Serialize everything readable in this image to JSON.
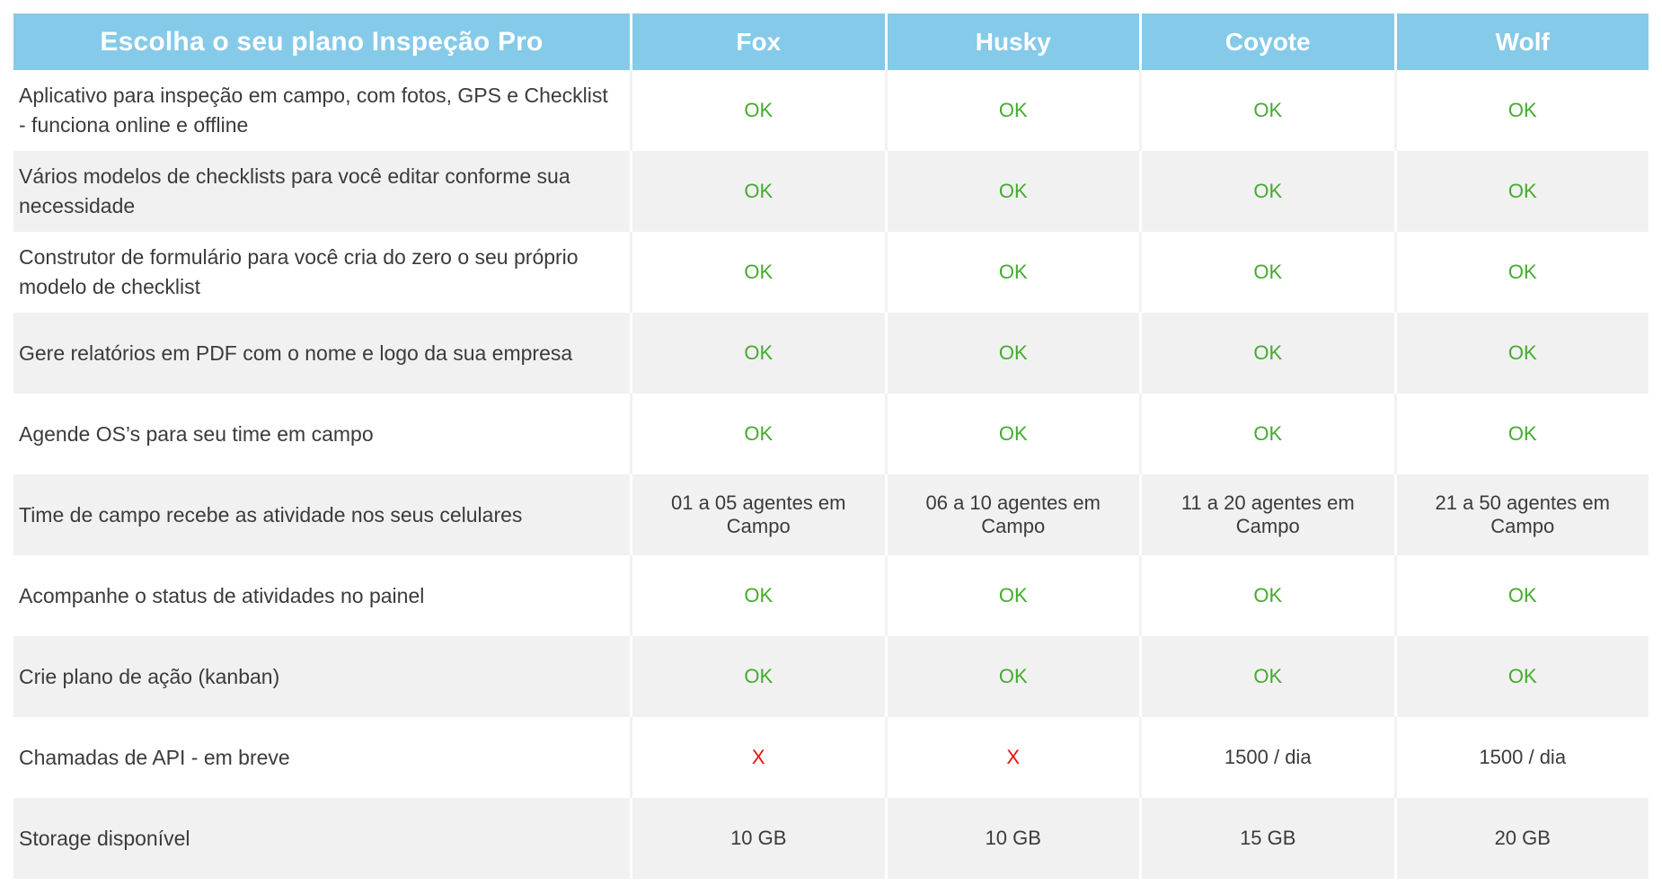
{
  "colors": {
    "header_bg": "#85CAE9",
    "header_text": "#FFFFFF",
    "row_alt_bg": "#F1F1F1",
    "body_text": "#3B3B3B",
    "ok_green": "#44AB2F",
    "x_red": "#F30B0B"
  },
  "table": {
    "title": "Escolha o seu plano Inspeção Pro",
    "plans": [
      "Fox",
      "Husky",
      "Coyote",
      "Wolf"
    ],
    "ok_label": "OK",
    "unavailable_label": "X",
    "rows": [
      {
        "feature": "Aplicativo para inspeção em campo, com fotos, GPS e Checklist - funciona online e offline",
        "values": [
          "OK",
          "OK",
          "OK",
          "OK"
        ]
      },
      {
        "feature": "Vários modelos de checklists para você editar conforme sua necessidade",
        "values": [
          "OK",
          "OK",
          "OK",
          "OK"
        ]
      },
      {
        "feature": "Construtor de formulário para você cria do zero o seu próprio modelo de checklist",
        "values": [
          "OK",
          "OK",
          "OK",
          "OK"
        ]
      },
      {
        "feature": "Gere relatórios em PDF com o nome e logo da sua empresa",
        "values": [
          "OK",
          "OK",
          "OK",
          "OK"
        ]
      },
      {
        "feature": "Agende OS’s para seu time em campo",
        "values": [
          "OK",
          "OK",
          "OK",
          "OK"
        ]
      },
      {
        "feature": "Time de campo recebe as atividade nos seus celulares",
        "values": [
          "01 a 05 agentes em Campo",
          "06 a 10 agentes em Campo",
          "11 a 20 agentes em Campo",
          "21 a 50 agentes em Campo"
        ]
      },
      {
        "feature": "Acompanhe o status de atividades no painel",
        "values": [
          "OK",
          "OK",
          "OK",
          "OK"
        ]
      },
      {
        "feature": "Crie plano de ação (kanban)",
        "values": [
          "OK",
          "OK",
          "OK",
          "OK"
        ]
      },
      {
        "feature": "Chamadas de API - em breve",
        "values": [
          "X",
          "X",
          "1500 / dia",
          "1500 / dia"
        ]
      },
      {
        "feature": "Storage disponível",
        "values": [
          "10 GB",
          "10 GB",
          "15 GB",
          "20 GB"
        ]
      }
    ]
  }
}
